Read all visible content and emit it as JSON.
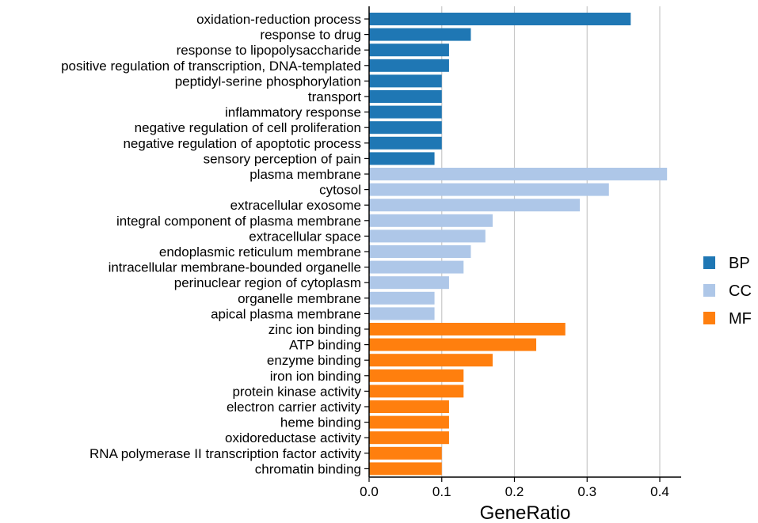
{
  "chart_data": {
    "type": "bar",
    "orientation": "horizontal",
    "title": "",
    "xlabel": "GeneRatio",
    "ylabel": "",
    "xlim": [
      0,
      0.43
    ],
    "xticks": [
      0.0,
      0.1,
      0.2,
      0.3,
      0.4
    ],
    "xtick_labels": [
      "0.0",
      "0.1",
      "0.2",
      "0.3",
      "0.4"
    ],
    "grid": "vertical",
    "legend_position": "right",
    "groups": [
      {
        "name": "BP",
        "color": "#1f77b4"
      },
      {
        "name": "CC",
        "color": "#aec7e8"
      },
      {
        "name": "MF",
        "color": "#ff7f0e"
      }
    ],
    "categories": [
      "oxidation-reduction process",
      "response to drug",
      "response to lipopolysaccharide",
      "positive regulation of transcription, DNA-templated",
      "peptidyl-serine phosphorylation",
      "transport",
      "inflammatory response",
      "negative regulation of cell proliferation",
      "negative regulation of apoptotic process",
      "sensory perception of pain",
      "plasma membrane",
      "cytosol",
      "extracellular exosome",
      "integral component of plasma membrane",
      "extracellular space",
      "endoplasmic reticulum membrane",
      "intracellular membrane-bounded organelle",
      "perinuclear region of cytoplasm",
      "organelle membrane",
      "apical plasma membrane",
      "zinc ion binding",
      "ATP binding",
      "enzyme binding",
      "iron ion binding",
      "protein kinase activity",
      "electron carrier activity",
      "heme binding",
      "oxidoreductase activity",
      "RNA polymerase II transcription factor activity",
      "chromatin binding"
    ],
    "values": [
      0.36,
      0.14,
      0.11,
      0.11,
      0.1,
      0.1,
      0.1,
      0.1,
      0.1,
      0.09,
      0.41,
      0.33,
      0.29,
      0.17,
      0.16,
      0.14,
      0.13,
      0.11,
      0.09,
      0.09,
      0.27,
      0.23,
      0.17,
      0.13,
      0.13,
      0.11,
      0.11,
      0.11,
      0.1,
      0.1
    ],
    "group_of": [
      "BP",
      "BP",
      "BP",
      "BP",
      "BP",
      "BP",
      "BP",
      "BP",
      "BP",
      "BP",
      "CC",
      "CC",
      "CC",
      "CC",
      "CC",
      "CC",
      "CC",
      "CC",
      "CC",
      "CC",
      "MF",
      "MF",
      "MF",
      "MF",
      "MF",
      "MF",
      "MF",
      "MF",
      "MF",
      "MF"
    ]
  }
}
